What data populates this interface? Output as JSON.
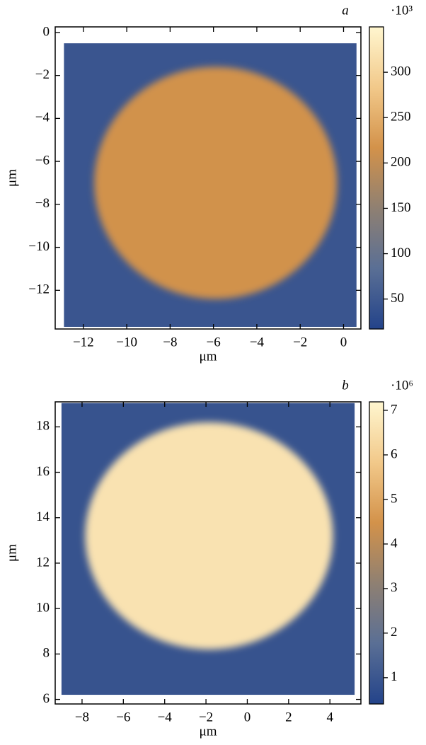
{
  "chart_data": [
    {
      "type": "heatmap",
      "panel_label": "a",
      "xlabel": "μm",
      "ylabel": "μm",
      "xlim": [
        -13.3,
        0.8
      ],
      "ylim": [
        -13.8,
        0.26
      ],
      "xticks": [
        {
          "value": -12,
          "label": "−12"
        },
        {
          "value": -10,
          "label": "−10"
        },
        {
          "value": -8,
          "label": "−8"
        },
        {
          "value": -6,
          "label": "−6"
        },
        {
          "value": -4,
          "label": "−4"
        },
        {
          "value": -2,
          "label": "−2"
        },
        0
      ],
      "yticks": [
        0,
        {
          "value": -2,
          "label": "−2"
        },
        {
          "value": -4,
          "label": "−4"
        },
        {
          "value": -6,
          "label": "−6"
        },
        {
          "value": -8,
          "label": "−8"
        },
        {
          "value": -10,
          "label": "−10"
        },
        {
          "value": -12,
          "label": "−12"
        }
      ],
      "image_extent": [
        -12.9,
        0.6,
        -13.7,
        -0.5
      ],
      "background_value": 45,
      "disk": {
        "center": [
          -5.9,
          -7.0
        ],
        "radius": [
          5.6,
          5.4
        ],
        "value": 215
      },
      "colorbar": {
        "label": "·10³",
        "lim": [
          17,
          350
        ],
        "ticks": [
          50,
          100,
          150,
          200,
          250,
          300
        ]
      },
      "colormap": [
        "#23438a",
        "#5a6f95",
        "#8f8072",
        "#d3924a",
        "#f2c98a",
        "#fff6cf"
      ]
    },
    {
      "type": "heatmap",
      "panel_label": "b",
      "xlabel": "μm",
      "ylabel": "μm",
      "xlim": [
        -9.3,
        5.5
      ],
      "ylim": [
        5.8,
        19.1
      ],
      "xticks": [
        {
          "value": -8,
          "label": "−8"
        },
        {
          "value": -6,
          "label": "−6"
        },
        {
          "value": -4,
          "label": "−4"
        },
        {
          "value": -2,
          "label": "−2"
        },
        0,
        2,
        4
      ],
      "yticks": [
        6,
        8,
        10,
        12,
        14,
        16,
        18
      ],
      "image_extent": [
        -9.0,
        5.2,
        6.2,
        19.05
      ],
      "background_value": 0.9,
      "disk": {
        "center": [
          -1.85,
          13.2
        ],
        "radius": [
          6.0,
          5.0
        ],
        "value": 6.6
      },
      "colorbar": {
        "label": "·10⁶",
        "lim": [
          0.41,
          7.19
        ],
        "ticks": [
          1,
          2,
          3,
          4,
          5,
          6,
          7
        ]
      },
      "colormap": [
        "#23438a",
        "#5a6f95",
        "#8f8072",
        "#d3924a",
        "#f2c98a",
        "#fff6cf"
      ]
    }
  ]
}
